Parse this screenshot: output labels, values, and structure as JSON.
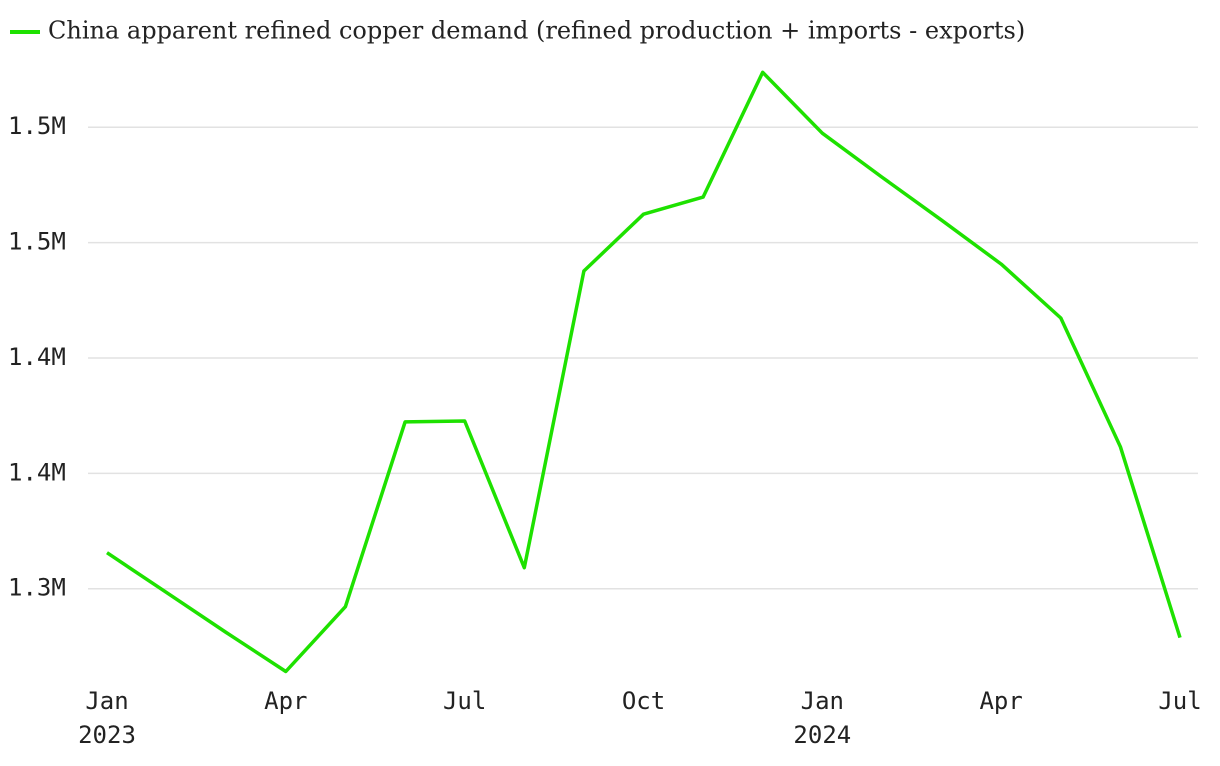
{
  "chart_data": {
    "type": "line",
    "x": [
      "2023-01",
      "2023-02",
      "2023-03",
      "2023-04",
      "2023-05",
      "2023-06",
      "2023-07",
      "2023-08",
      "2023-09",
      "2023-10",
      "2023-11",
      "2023-12",
      "2024-01",
      "2024-02",
      "2024-03",
      "2024-04",
      "2024-05",
      "2024-06",
      "2024-07"
    ],
    "series": [
      {
        "name": "China apparent refined copper demand (refined production + imports - exports)",
        "color": "#1ee100",
        "values": [
          1315600,
          1298300,
          1281000,
          1264100,
          1292200,
          1372300,
          1372700,
          1309100,
          1437700,
          1462300,
          1469700,
          1523800,
          1497400,
          1478400,
          1459700,
          1440700,
          1417300,
          1361500,
          1278800
        ]
      }
    ],
    "xlim": [
      "2023-01",
      "2024-07"
    ],
    "xticks": [
      {
        "value": "2023-01",
        "label": "Jan",
        "sublabel": "2023"
      },
      {
        "value": "2023-04",
        "label": "Apr"
      },
      {
        "value": "2023-07",
        "label": "Jul"
      },
      {
        "value": "2023-10",
        "label": "Oct"
      },
      {
        "value": "2024-01",
        "label": "Jan",
        "sublabel": "2024"
      },
      {
        "value": "2024-04",
        "label": "Apr"
      },
      {
        "value": "2024-07",
        "label": "Jul"
      }
    ],
    "ylim": [
      1260000,
      1530000
    ],
    "yticks": [
      {
        "value": 1300000,
        "label": "1.3M"
      },
      {
        "value": 1350000,
        "label": "1.4M"
      },
      {
        "value": 1400000,
        "label": "1.4M"
      },
      {
        "value": 1450000,
        "label": "1.5M"
      },
      {
        "value": 1500000,
        "label": "1.5M"
      }
    ],
    "grid": true,
    "legend": "top-left"
  }
}
